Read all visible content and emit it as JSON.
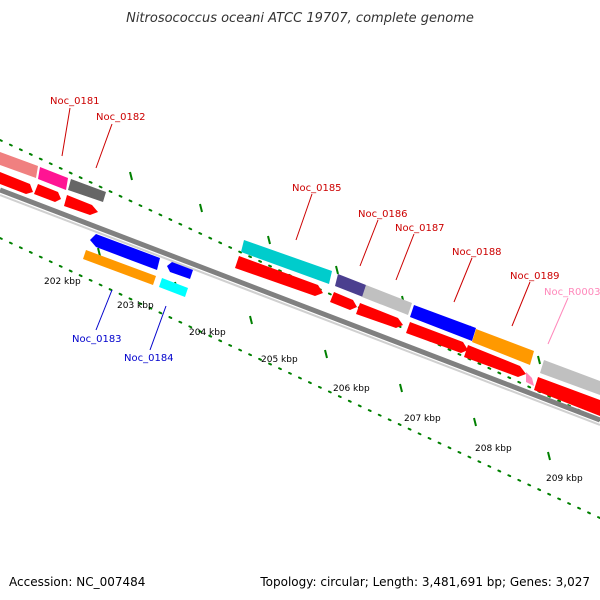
{
  "title": "Nitrosococcus oceani ATCC 19707, complete genome",
  "footer": {
    "accession": "Accession: NC_007484",
    "summary": "Topology: circular; Length: 3,481,691 bp; Genes: 3,027"
  },
  "colors": {
    "backbone": "#808080",
    "forward_label": "#cc0000",
    "reverse_label": "#0000cc",
    "rna_label": "#ff88bb",
    "tick_dots": "#008000",
    "cds_red": "#ff0000",
    "gene_cyan": "#00cccc",
    "gene_orange": "#ff9900",
    "gene_blue": "#0000ff",
    "gene_grey": "#c0c0c0",
    "gene_dark_grey": "#666666",
    "gene_purple": "#4b3f8f",
    "gene_pink": "#ff1493",
    "gene_salmon": "#f08080"
  },
  "scale": {
    "unit": "kbp",
    "ticks": [
      "202 kbp",
      "203 kbp",
      "204 kbp",
      "205 kbp",
      "206 kbp",
      "207 kbp",
      "208 kbp",
      "209 kbp"
    ]
  },
  "labels": {
    "forward": [
      "Noc_0181",
      "Noc_0182",
      "Noc_0185",
      "Noc_0186",
      "Noc_0187",
      "Noc_0188",
      "Noc_0189"
    ],
    "reverse": [
      "Noc_0183",
      "Noc_0184"
    ],
    "rna": [
      "Noc_R0003"
    ]
  }
}
